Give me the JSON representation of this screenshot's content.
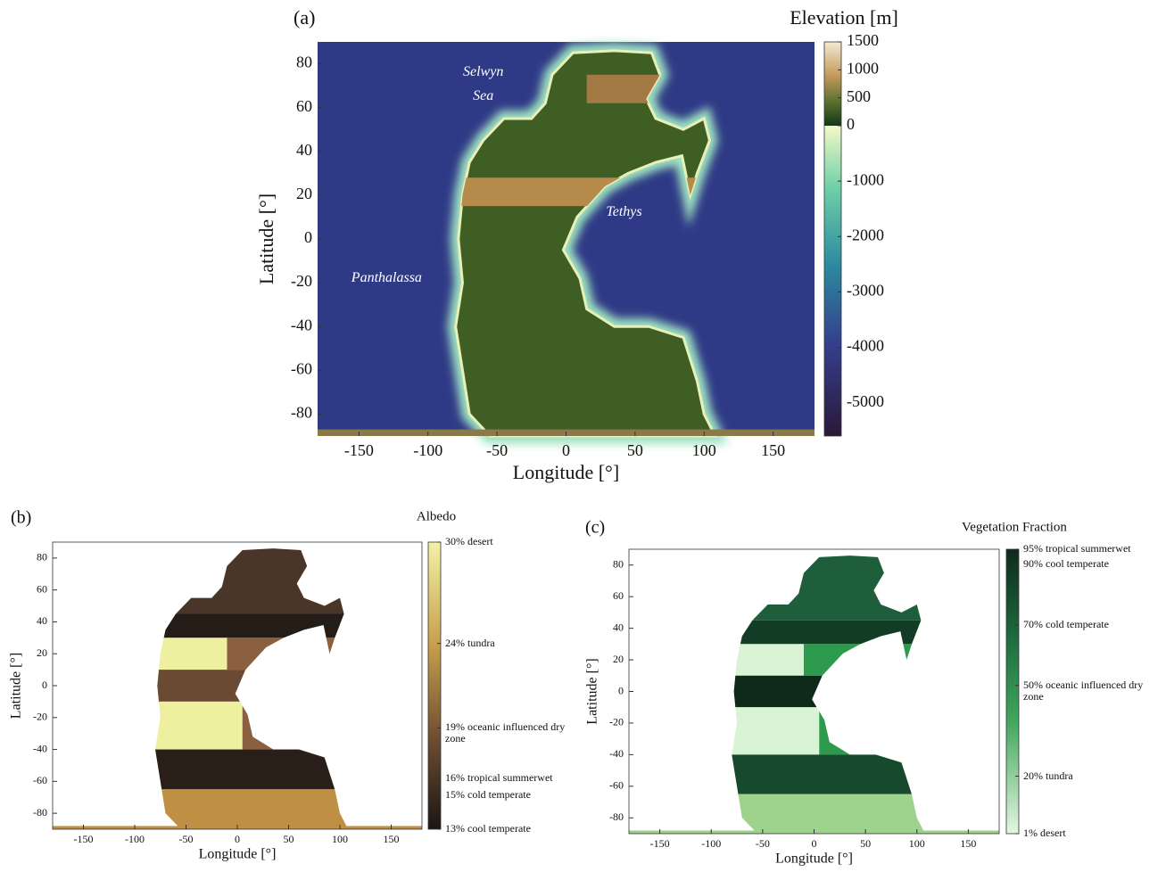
{
  "chart_data": [
    {
      "type": "map",
      "panel": "(a)",
      "colorbar_title": "Elevation [m]",
      "xlabel": "Longitude [°]",
      "ylabel": "Latitude [°]",
      "xlim": [
        -180,
        180
      ],
      "ylim": [
        -90,
        90
      ],
      "xticks": [
        -150,
        -100,
        -50,
        0,
        50,
        100,
        150
      ],
      "yticks": [
        -80,
        -60,
        -40,
        -20,
        0,
        20,
        40,
        60,
        80
      ],
      "clim": [
        -5600,
        1500
      ],
      "cticks": [
        1500,
        1000,
        500,
        0,
        -1000,
        -2000,
        -3000,
        -4000,
        -5000
      ],
      "annotations": [
        "Selwyn",
        "Sea",
        "Tethys",
        "Panthalassa"
      ]
    },
    {
      "type": "map",
      "panel": "(b)",
      "colorbar_title": "Albedo",
      "xlabel": "Longitude [°]",
      "ylabel": "Latitude [°]",
      "xlim": [
        -180,
        180
      ],
      "ylim": [
        -90,
        90
      ],
      "xticks": [
        -150,
        -100,
        -50,
        0,
        50,
        100,
        150
      ],
      "yticks": [
        -80,
        -60,
        -40,
        -20,
        0,
        20,
        40,
        60,
        80
      ],
      "clim": [
        13,
        30
      ],
      "cticks": [
        {
          "value": 30,
          "label": "30% desert"
        },
        {
          "value": 24,
          "label": "24% tundra"
        },
        {
          "value": 19,
          "label": "19% oceanic influenced dry zone"
        },
        {
          "value": 16,
          "label": "16% tropical summerwet"
        },
        {
          "value": 15,
          "label": "15% cold temperate"
        },
        {
          "value": 13,
          "label": "13% cool temperate"
        }
      ]
    },
    {
      "type": "map",
      "panel": "(c)",
      "colorbar_title": "Vegetation Fraction",
      "xlabel": "Longitude [°]",
      "ylabel": "Latitude [°]",
      "xlim": [
        -180,
        180
      ],
      "ylim": [
        -90,
        90
      ],
      "xticks": [
        -150,
        -100,
        -50,
        0,
        50,
        100,
        150
      ],
      "yticks": [
        -80,
        -60,
        -40,
        -20,
        0,
        20,
        40,
        60,
        80
      ],
      "clim": [
        1,
        95
      ],
      "cticks": [
        {
          "value": 95,
          "label": "95% tropical summerwet"
        },
        {
          "value": 90,
          "label": "90% cool temperate"
        },
        {
          "value": 70,
          "label": "70% cold temperate"
        },
        {
          "value": 50,
          "label": "50% oceanic influenced dry zone"
        },
        {
          "value": 20,
          "label": "20% tundra"
        },
        {
          "value": 1,
          "label": "1% desert"
        }
      ]
    }
  ]
}
